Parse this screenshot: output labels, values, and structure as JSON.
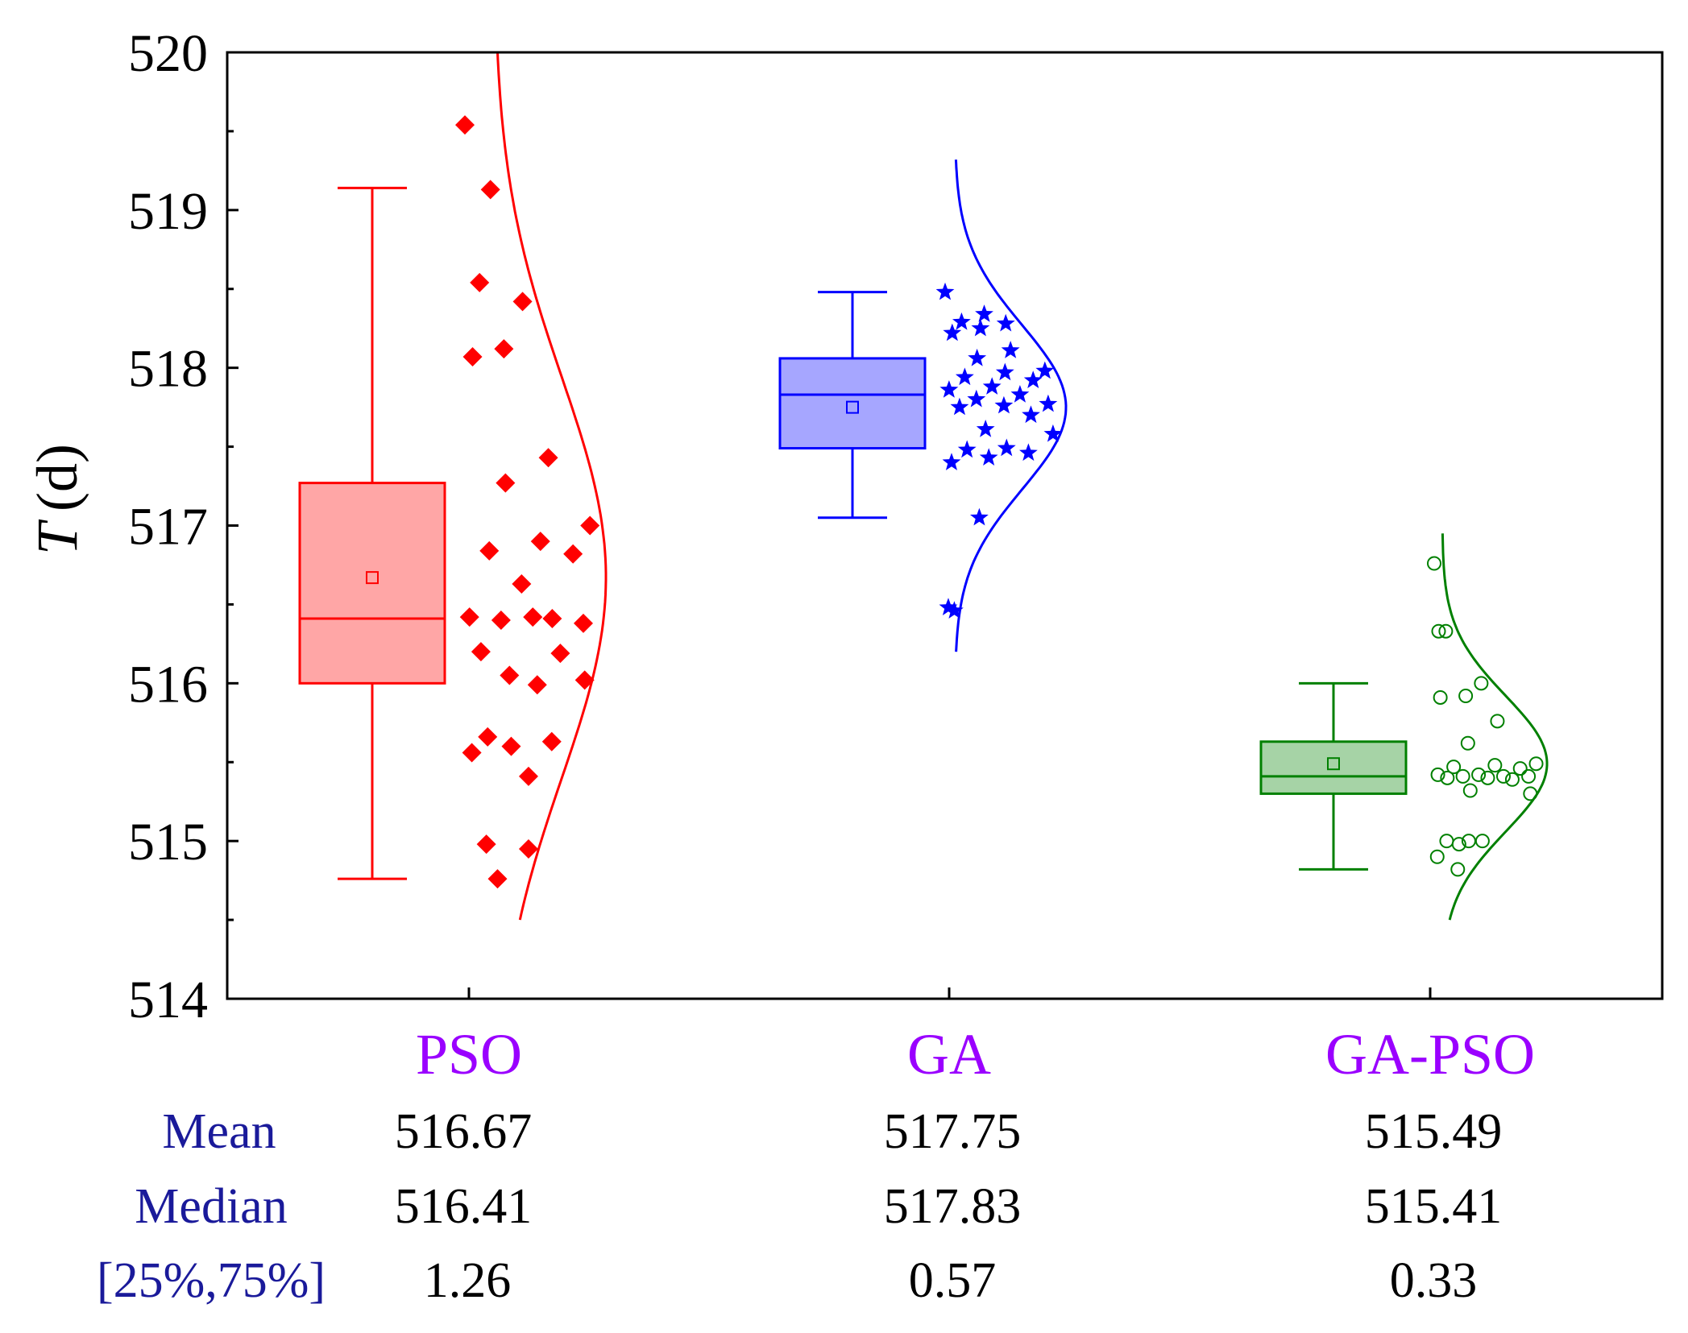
{
  "colors": {
    "PSO": "#ff0000",
    "GA": "#0000ff",
    "GA-PSO": "#008000",
    "category_label": "#9a00ff",
    "stat_label": "#1a1a9a",
    "axis": "#000000"
  },
  "chart_data": {
    "type": "boxplot",
    "ylabel": {
      "symbol": "T",
      "unit": "(d)"
    },
    "ylim": [
      514,
      520
    ],
    "yticks": [
      514,
      515,
      516,
      517,
      518,
      519,
      520
    ],
    "minor_yticks": [
      514.5,
      515.5,
      516.5,
      517.5,
      518.5,
      519.5
    ],
    "categories": [
      "PSO",
      "GA",
      "GA-PSO"
    ],
    "series": [
      {
        "name": "PSO",
        "color_key": "PSO",
        "marker": "diamond",
        "box": {
          "whisker_low": 514.76,
          "q1": 516.0,
          "median": 516.41,
          "q3": 517.27,
          "whisker_high": 519.14,
          "mean": 516.67
        },
        "normal_curve": {
          "mean": 516.67,
          "sd": 1.27,
          "y_range": [
            514.5,
            520.0
          ]
        },
        "points": [
          519.54,
          519.13,
          518.54,
          518.42,
          518.12,
          518.07,
          517.43,
          517.27,
          517.0,
          516.9,
          516.84,
          516.82,
          516.63,
          516.42,
          516.41,
          516.4,
          516.38,
          516.42,
          516.2,
          516.19,
          516.05,
          516.02,
          515.99,
          515.66,
          515.63,
          515.6,
          515.56,
          515.41,
          514.98,
          514.95,
          514.76
        ]
      },
      {
        "name": "GA",
        "color_key": "GA",
        "marker": "star",
        "box": {
          "whisker_low": 517.05,
          "q1": 517.49,
          "median": 517.83,
          "q3": 518.06,
          "whisker_high": 518.48,
          "mean": 517.75
        },
        "normal_curve": {
          "mean": 517.75,
          "sd": 0.52,
          "y_range": [
            516.2,
            519.32
          ]
        },
        "points": [
          518.48,
          518.34,
          518.29,
          518.28,
          518.25,
          518.22,
          518.11,
          518.06,
          517.98,
          517.97,
          517.94,
          517.92,
          517.88,
          517.86,
          517.83,
          517.8,
          517.77,
          517.76,
          517.75,
          517.7,
          517.61,
          517.58,
          517.49,
          517.48,
          517.46,
          517.43,
          517.4,
          517.05,
          516.48,
          516.46
        ]
      },
      {
        "name": "GA-PSO",
        "color_key": "GA-PSO",
        "marker": "circle-open",
        "box": {
          "whisker_low": 514.82,
          "q1": 515.3,
          "median": 515.41,
          "q3": 515.63,
          "whisker_high": 516.0,
          "mean": 515.49
        },
        "normal_curve": {
          "mean": 515.49,
          "sd": 0.43,
          "y_range": [
            514.5,
            516.95
          ]
        },
        "points": [
          516.76,
          516.33,
          516.33,
          516.0,
          515.92,
          515.91,
          515.76,
          515.62,
          515.49,
          515.48,
          515.47,
          515.46,
          515.42,
          515.42,
          515.41,
          515.41,
          515.41,
          515.4,
          515.4,
          515.39,
          515.32,
          515.3,
          515.0,
          515.0,
          515.0,
          514.98,
          514.9,
          514.82
        ]
      }
    ]
  },
  "stats_table": {
    "row_labels": [
      "Mean",
      "Median",
      "[25%,75%]"
    ],
    "columns": [
      {
        "name": "PSO",
        "mean": "516.67",
        "median": "516.41",
        "iqr": "1.26"
      },
      {
        "name": "GA",
        "mean": "517.75",
        "median": "517.83",
        "iqr": "0.57"
      },
      {
        "name": "GA-PSO",
        "mean": "515.49",
        "median": "515.41",
        "iqr": "0.33"
      }
    ]
  }
}
